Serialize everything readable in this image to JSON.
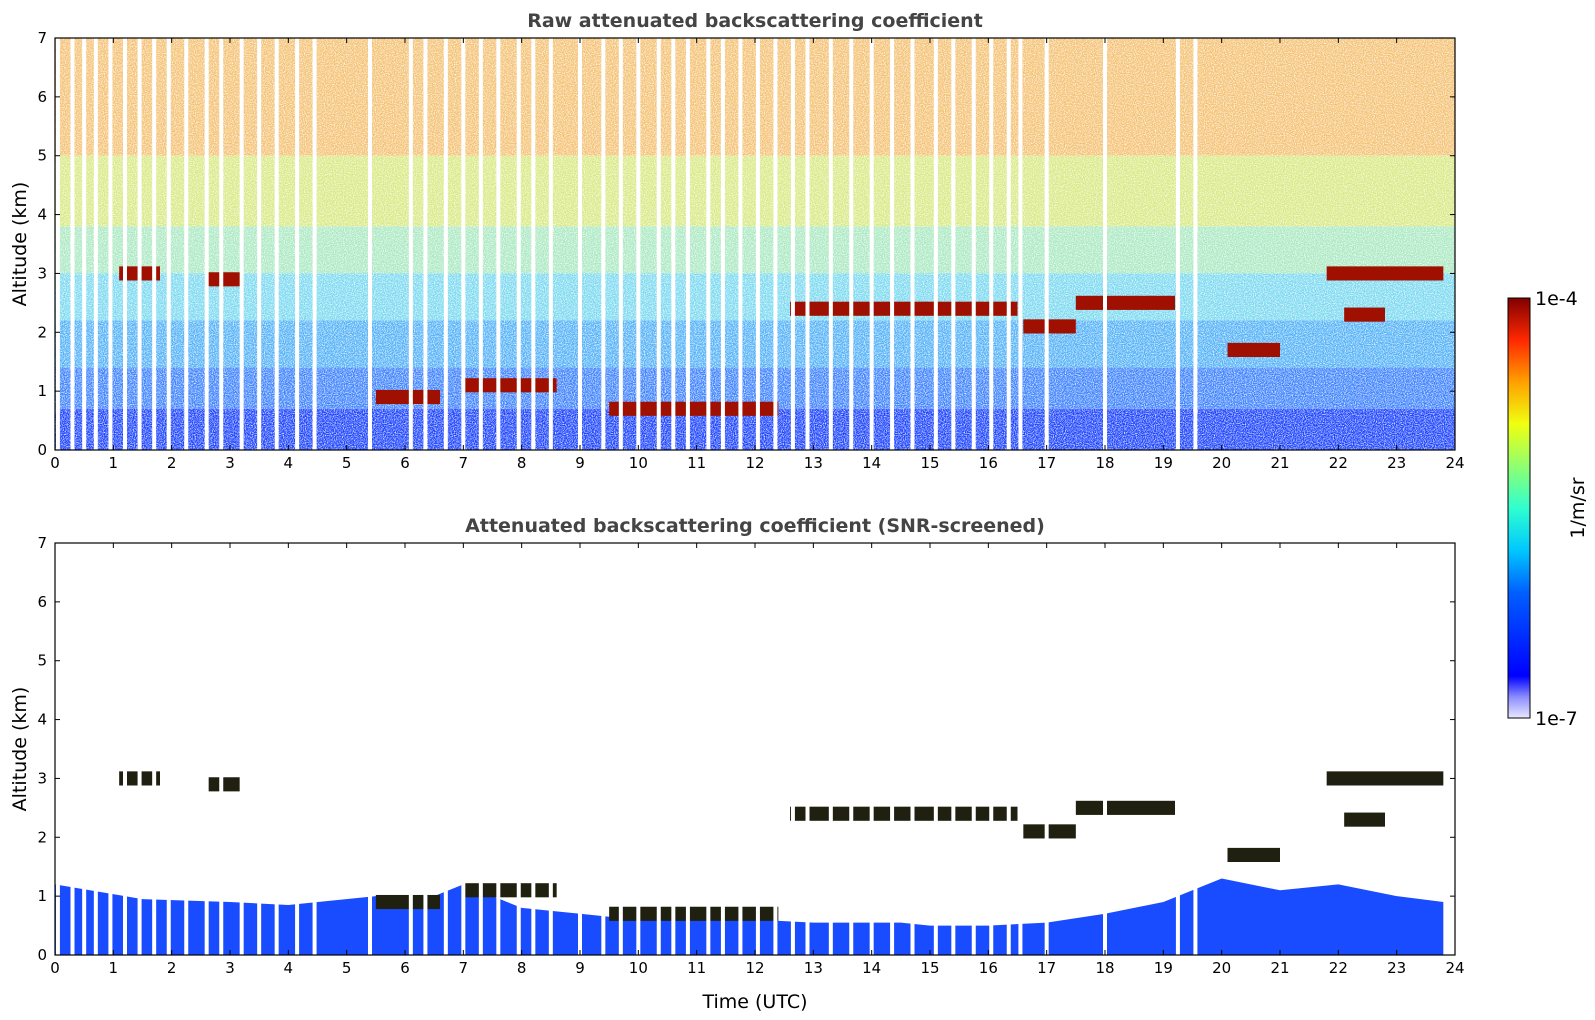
{
  "chart_data": [
    {
      "type": "heatmap",
      "title": "Raw attenuated backscattering coefficient",
      "ylabel": "Altitude (km)",
      "xlabel": "",
      "xlim": [
        0,
        24
      ],
      "ylim": [
        0,
        7
      ],
      "xticks": [
        "0",
        "1",
        "2",
        "3",
        "4",
        "5",
        "6",
        "7",
        "8",
        "9",
        "10",
        "11",
        "12",
        "13",
        "14",
        "15",
        "16",
        "17",
        "18",
        "19",
        "20",
        "21",
        "22",
        "23",
        "24"
      ],
      "yticks": [
        "0",
        "1",
        "2",
        "3",
        "4",
        "5",
        "6",
        "7"
      ],
      "data_gaps_utc": [
        0.05,
        0.3,
        0.5,
        0.7,
        0.95,
        1.2,
        1.45,
        1.7,
        1.95,
        2.25,
        2.6,
        2.85,
        3.2,
        3.5,
        3.8,
        4.15,
        4.45,
        5.4,
        6.1,
        6.35,
        6.7,
        7.0,
        7.3,
        7.6,
        7.95,
        8.2,
        8.5,
        9.0,
        9.4,
        9.7,
        10.0,
        10.35,
        10.6,
        10.85,
        11.2,
        11.45,
        11.75,
        12.05,
        12.35,
        12.65,
        12.9,
        13.3,
        13.65,
        14.0,
        14.35,
        14.7,
        15.1,
        15.4,
        15.75,
        16.05,
        16.35,
        16.55,
        17.0,
        18.0,
        19.25,
        19.55
      ],
      "layers_km": [
        {
          "t": [
            1.1,
            1.8
          ],
          "alt": 3.0,
          "kind": "cloud"
        },
        {
          "t": [
            2.6,
            3.2
          ],
          "alt": 2.9,
          "kind": "cloud"
        },
        {
          "t": [
            5.5,
            6.6
          ],
          "alt": 0.9,
          "kind": "boundary-layer top"
        },
        {
          "t": [
            7.0,
            8.6
          ],
          "alt": 1.1,
          "kind": "aerosol/cloud"
        },
        {
          "t": [
            9.5,
            12.4
          ],
          "alt": 0.7,
          "kind": "boundary-layer top"
        },
        {
          "t": [
            12.6,
            16.5
          ],
          "alt": 2.4,
          "kind": "cloud"
        },
        {
          "t": [
            16.6,
            17.5
          ],
          "alt": 2.1,
          "kind": "cloud"
        },
        {
          "t": [
            17.5,
            19.2
          ],
          "alt": 2.5,
          "kind": "cloud"
        },
        {
          "t": [
            20.1,
            21.0
          ],
          "alt": 1.7,
          "kind": "cloud"
        },
        {
          "t": [
            21.8,
            23.8
          ],
          "alt": 3.0,
          "kind": "cloud"
        },
        {
          "t": [
            22.1,
            22.8
          ],
          "alt": 2.3,
          "kind": "cloud"
        }
      ],
      "colormap": "jet",
      "colorbar_min": "1e-7",
      "colorbar_max": "1e-4",
      "colorbar_label": "1/m/sr"
    },
    {
      "type": "heatmap",
      "title": "Attenuated backscattering coefficient (SNR-screened)",
      "ylabel": "Altitude (km)",
      "xlabel": "Time (UTC)",
      "xlim": [
        0,
        24
      ],
      "ylim": [
        0,
        7
      ],
      "xticks": [
        "0",
        "1",
        "2",
        "3",
        "4",
        "5",
        "6",
        "7",
        "8",
        "9",
        "10",
        "11",
        "12",
        "13",
        "14",
        "15",
        "16",
        "17",
        "18",
        "19",
        "20",
        "21",
        "22",
        "23",
        "24"
      ],
      "yticks": [
        "0",
        "1",
        "2",
        "3",
        "4",
        "5",
        "6",
        "7"
      ],
      "boundary_layer_top_km": {
        "t": [
          0,
          1.5,
          3.0,
          4.0,
          5.5,
          6.5,
          7.0,
          8.0,
          9.0,
          10.0,
          12.0,
          13.0,
          14.5,
          15.0,
          16.0,
          17.0,
          18.0,
          19.0,
          20.0,
          21.0,
          22.0,
          23.0,
          23.8
        ],
        "alt": [
          1.2,
          0.95,
          0.9,
          0.85,
          1.0,
          1.0,
          1.2,
          0.8,
          0.7,
          0.6,
          0.6,
          0.55,
          0.55,
          0.5,
          0.5,
          0.55,
          0.7,
          0.9,
          1.3,
          1.1,
          1.2,
          1.0,
          0.9
        ]
      },
      "colormap": "jet",
      "colorbar_min": "1e-7",
      "colorbar_max": "1e-4",
      "colorbar_label": "1/m/sr"
    }
  ]
}
